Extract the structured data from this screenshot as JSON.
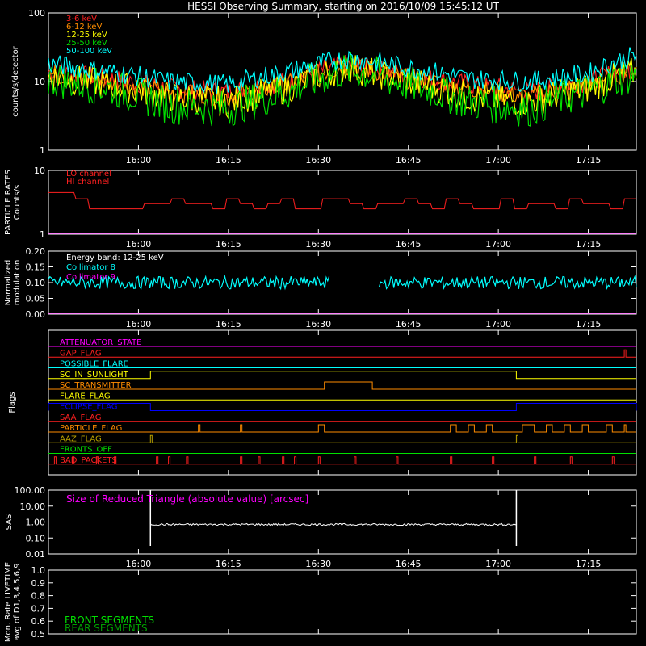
{
  "title": "HESSI Observing Summary, starting on 2016/10/09 15:45:12 UT",
  "colors": {
    "background": "#000000",
    "axes": "#ffffff",
    "red": "#ff2020",
    "orange": "#ff8c00",
    "yellow": "#ffff00",
    "green": "#00e000",
    "cyan": "#00ffff",
    "magenta": "#ff00ff",
    "blue": "#0000ff",
    "olive": "#b8a000",
    "darkgreen": "#00a000"
  },
  "time_axis": {
    "start": "15:45",
    "end": "17:23",
    "ticks": [
      "16:00",
      "16:15",
      "16:30",
      "16:45",
      "17:00",
      "17:15"
    ]
  },
  "chart_data": [
    {
      "id": "count-rates",
      "type": "line",
      "ylabel": "counts/s/detector",
      "yscale": "log",
      "ylim": [
        1,
        100
      ],
      "yticks": [
        "1",
        "10",
        "100"
      ],
      "series": [
        {
          "name": "3-6 keV",
          "color": "#ff2020",
          "x": [
            "15:45",
            "15:55",
            "16:05",
            "16:15",
            "16:25",
            "16:35",
            "16:45",
            "16:55",
            "17:05",
            "17:15",
            "17:23"
          ],
          "values": [
            14,
            11,
            8,
            7,
            10,
            18,
            12,
            9,
            7,
            10,
            16
          ]
        },
        {
          "name": "6-12 keV",
          "color": "#ff8c00",
          "x": [
            "15:45",
            "15:55",
            "16:05",
            "16:15",
            "16:25",
            "16:35",
            "16:45",
            "16:55",
            "17:05",
            "17:15",
            "17:23"
          ],
          "values": [
            13,
            10,
            7,
            6,
            9,
            17,
            11,
            8,
            6,
            9,
            15
          ]
        },
        {
          "name": "12-25 keV",
          "color": "#ffff00",
          "x": [
            "15:45",
            "15:55",
            "16:05",
            "16:15",
            "16:25",
            "16:35",
            "16:45",
            "16:55",
            "17:05",
            "17:15",
            "17:23"
          ],
          "values": [
            12,
            9,
            6,
            5,
            8,
            16,
            10,
            6,
            5,
            8,
            14
          ]
        },
        {
          "name": "25-50 keV",
          "color": "#00e000",
          "x": [
            "15:45",
            "15:55",
            "16:05",
            "16:15",
            "16:25",
            "16:35",
            "16:45",
            "16:55",
            "17:05",
            "17:15",
            "17:23"
          ],
          "values": [
            11,
            8,
            4.5,
            4,
            7,
            15,
            9,
            5,
            4,
            7,
            13
          ]
        },
        {
          "name": "50-100 keV",
          "color": "#00ffff",
          "x": [
            "15:45",
            "15:55",
            "16:05",
            "16:15",
            "16:25",
            "16:35",
            "16:45",
            "16:55",
            "17:05",
            "17:15",
            "17:23"
          ],
          "values": [
            18,
            14,
            10,
            9,
            14,
            22,
            16,
            11,
            10,
            13,
            24
          ]
        }
      ]
    },
    {
      "id": "particle-rates",
      "type": "line",
      "ylabel": "PARTICLE RATES Counts/s",
      "yscale": "log",
      "ylim": [
        1,
        10
      ],
      "yticks": [
        "1",
        "10"
      ],
      "series": [
        {
          "name": "LO channel",
          "color": "#ff2020",
          "x": [],
          "values": []
        },
        {
          "name": "HI channel",
          "color": "#ff2020",
          "x": [
            "15:45",
            "15:50",
            "16:00",
            "16:10",
            "16:20",
            "16:30",
            "16:40",
            "16:50",
            "17:00",
            "17:10",
            "17:20",
            "17:23"
          ],
          "values": [
            4.5,
            3.3,
            3,
            3,
            3,
            3,
            3,
            3,
            3,
            3,
            3,
            3
          ]
        }
      ]
    },
    {
      "id": "modulation",
      "type": "line",
      "ylabel": "Normalized modulation",
      "ylim": [
        0,
        0.2
      ],
      "yticks": [
        "0.00",
        "0.05",
        "0.10",
        "0.15",
        "0.20"
      ],
      "annotation": "Energy band: 12-25 keV",
      "series": [
        {
          "name": "Collimator 8",
          "color": "#00ffff",
          "x": [
            "15:45",
            "16:00",
            "16:15",
            "16:30",
            "16:45",
            "17:00",
            "17:15",
            "17:23"
          ],
          "values": [
            0.1,
            0.1,
            0.1,
            0.1,
            0.1,
            0.1,
            0.1,
            0.1
          ],
          "gaps": [
            [
              "16:32",
              "16:40"
            ]
          ]
        },
        {
          "name": "Collimator 9",
          "color": "#ff00ff",
          "x": [
            "15:45",
            "17:23"
          ],
          "values": [
            0,
            0
          ]
        }
      ]
    },
    {
      "id": "flags",
      "type": "line",
      "ylabel": "Flags",
      "series": [
        {
          "name": "ATTENUATOR_STATE",
          "color": "#ff00ff",
          "intervals": []
        },
        {
          "name": "GAP_FLAG",
          "color": "#ff2020",
          "intervals": [
            [
              "17:21",
              "17:21"
            ]
          ]
        },
        {
          "name": "POSSIBLE_FLARE",
          "color": "#00ffff",
          "intervals": []
        },
        {
          "name": "SC_IN_SUNLIGHT",
          "color": "#ffff00",
          "intervals": [
            [
              "16:02",
              "17:03"
            ]
          ]
        },
        {
          "name": "SC_TRANSMITTER",
          "color": "#ff8c00",
          "intervals": [
            [
              "16:31",
              "16:39"
            ]
          ]
        },
        {
          "name": "FLARE_FLAG",
          "color": "#ffff00",
          "intervals": []
        },
        {
          "name": "ECLIPSE_FLAG",
          "color": "#0000ff",
          "intervals": [
            [
              "15:45",
              "16:02"
            ],
            [
              "17:03",
              "17:23"
            ]
          ]
        },
        {
          "name": "SAA_FLAG",
          "color": "#ff2020",
          "intervals": []
        },
        {
          "name": "PARTICLE_FLAG",
          "color": "#ff8c00",
          "intervals": [
            [
              "16:10",
              "16:10"
            ],
            [
              "16:17",
              "16:17"
            ],
            [
              "16:30",
              "16:31"
            ],
            [
              "16:52",
              "16:53"
            ],
            [
              "16:55",
              "16:56"
            ],
            [
              "16:58",
              "16:59"
            ],
            [
              "17:04",
              "17:06"
            ],
            [
              "17:08",
              "17:09"
            ],
            [
              "17:11",
              "17:12"
            ],
            [
              "17:14",
              "17:15"
            ],
            [
              "17:18",
              "17:19"
            ],
            [
              "17:21",
              "17:21"
            ]
          ]
        },
        {
          "name": "AAZ_FLAG",
          "color": "#b8a000",
          "intervals": [
            [
              "16:02",
              "16:02"
            ],
            [
              "17:03",
              "17:03"
            ]
          ]
        },
        {
          "name": "FRONTS_OFF",
          "color": "#00e000",
          "intervals": []
        },
        {
          "name": "BAD_PACKETS",
          "color": "#ff2020",
          "intervals": [
            [
              "15:46",
              "15:46"
            ],
            [
              "15:49",
              "15:49"
            ],
            [
              "15:53",
              "15:53"
            ],
            [
              "15:56",
              "15:56"
            ],
            [
              "16:03",
              "16:03"
            ],
            [
              "16:05",
              "16:05"
            ],
            [
              "16:08",
              "16:08"
            ],
            [
              "16:17",
              "16:17"
            ],
            [
              "16:20",
              "16:20"
            ],
            [
              "16:24",
              "16:24"
            ],
            [
              "16:26",
              "16:26"
            ],
            [
              "16:30",
              "16:30"
            ],
            [
              "16:36",
              "16:36"
            ],
            [
              "16:43",
              "16:43"
            ],
            [
              "16:52",
              "16:52"
            ],
            [
              "16:59",
              "16:59"
            ],
            [
              "17:06",
              "17:06"
            ],
            [
              "17:12",
              "17:12"
            ],
            [
              "17:19",
              "17:19"
            ]
          ]
        }
      ]
    },
    {
      "id": "sas",
      "type": "line",
      "ylabel": "SAS",
      "yscale": "log",
      "ylim": [
        0.01,
        100
      ],
      "yticks": [
        "0.01",
        "0.10",
        "1.00",
        "10.00",
        "100.00"
      ],
      "series": [
        {
          "name": "Size of Reduced Triangle (absolute value) [arcsec]",
          "color": "#ff00ff",
          "x": [
            "16:02",
            "16:10",
            "16:30",
            "16:50",
            "17:03"
          ],
          "values": [
            0.7,
            0.7,
            0.7,
            0.7,
            0.7
          ]
        }
      ]
    },
    {
      "id": "livetime",
      "type": "line",
      "ylabel": "Mon. Rate LIVETIME avg of D1,3,4,5,6,9",
      "ylim": [
        0.5,
        1.0
      ],
      "yticks": [
        "0.5",
        "0.6",
        "0.7",
        "0.8",
        "0.9",
        "1.0"
      ],
      "series": [
        {
          "name": "FRONT SEGMENTS",
          "color": "#00e000",
          "x": [],
          "values": []
        },
        {
          "name": "REAR SEGMENTS",
          "color": "#00a000",
          "x": [],
          "values": []
        }
      ]
    }
  ]
}
